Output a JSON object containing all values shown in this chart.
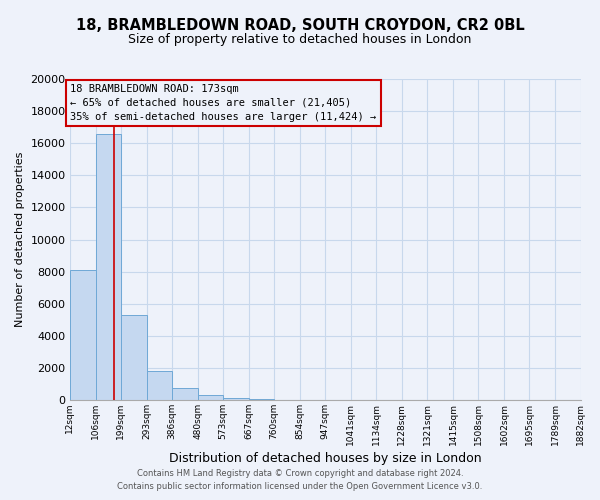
{
  "title_line1": "18, BRAMBLEDOWN ROAD, SOUTH CROYDON, CR2 0BL",
  "title_line2": "Size of property relative to detached houses in London",
  "xlabel": "Distribution of detached houses by size in London",
  "ylabel": "Number of detached properties",
  "bar_edges": [
    12,
    106,
    199,
    293,
    386,
    480,
    573,
    667,
    760,
    854,
    947,
    1041,
    1134,
    1228,
    1321,
    1415,
    1508,
    1602,
    1695,
    1789,
    1882
  ],
  "bar_heights": [
    8100,
    16600,
    5300,
    1800,
    750,
    300,
    150,
    100,
    0,
    0,
    0,
    0,
    0,
    0,
    0,
    0,
    0,
    0,
    0,
    0
  ],
  "bar_color": "#c5d8f0",
  "bar_edge_color": "#6fa8d6",
  "vline_x": 173,
  "vline_color": "#cc0000",
  "ylim": [
    0,
    20000
  ],
  "yticks": [
    0,
    2000,
    4000,
    6000,
    8000,
    10000,
    12000,
    14000,
    16000,
    18000,
    20000
  ],
  "xtick_labels": [
    "12sqm",
    "106sqm",
    "199sqm",
    "293sqm",
    "386sqm",
    "480sqm",
    "573sqm",
    "667sqm",
    "760sqm",
    "854sqm",
    "947sqm",
    "1041sqm",
    "1134sqm",
    "1228sqm",
    "1321sqm",
    "1415sqm",
    "1508sqm",
    "1602sqm",
    "1695sqm",
    "1789sqm",
    "1882sqm"
  ],
  "annotation_line1": "18 BRAMBLEDOWN ROAD: 173sqm",
  "annotation_line2": "← 65% of detached houses are smaller (21,405)",
  "annotation_line3": "35% of semi-detached houses are larger (11,424) →",
  "footer_line1": "Contains HM Land Registry data © Crown copyright and database right 2024.",
  "footer_line2": "Contains public sector information licensed under the Open Government Licence v3.0.",
  "grid_color": "#c8d8ec",
  "bg_color": "#eef2fa",
  "title1_fontsize": 10.5,
  "title2_fontsize": 9,
  "ylabel_fontsize": 8,
  "xlabel_fontsize": 9,
  "ytick_fontsize": 8,
  "xtick_fontsize": 6.5,
  "annot_fontsize": 7.5,
  "footer_fontsize": 6
}
